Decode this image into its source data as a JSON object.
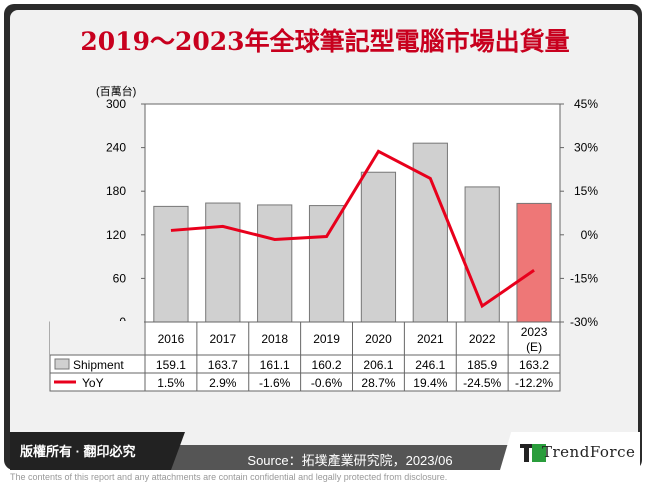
{
  "title": "2019～2023年全球筆記型電腦市場出貨量",
  "footer": {
    "copyright": "版權所有 · 翻印必究",
    "source": "Source：拓墣產業研究院，2023/06",
    "brand": "TrendForce",
    "disclaimer": "The contents of this report and any attachments are contain confidential and legally protected from disclosure."
  },
  "chart_data": {
    "type": "bar+line",
    "ylabel": "(百萬台)",
    "categories": [
      "2016",
      "2017",
      "2018",
      "2019",
      "2020",
      "2021",
      "2022",
      "2023(E)"
    ],
    "y_ticks": [
      "300",
      "240",
      "180",
      "120",
      "60",
      "0"
    ],
    "y2_ticks": [
      "45%",
      "30%",
      "15%",
      "0%",
      "-15%",
      "-30%"
    ],
    "ylim": [
      0,
      300
    ],
    "y2lim": [
      -30,
      45
    ],
    "series": [
      {
        "name": "Shipment",
        "type": "bar",
        "values": [
          159.1,
          163.7,
          161.1,
          160.2,
          206.1,
          246.1,
          185.9,
          163.2
        ],
        "labels": [
          "159.1",
          "163.7",
          "161.1",
          "160.2",
          "206.1",
          "246.1",
          "185.9",
          "163.2"
        ],
        "color": "#d0d0d0",
        "highlight_color": "#ee7777"
      },
      {
        "name": "YoY",
        "type": "line",
        "axis": "right",
        "values": [
          1.5,
          2.9,
          -1.6,
          -0.6,
          28.7,
          19.4,
          -24.5,
          -12.2
        ],
        "labels": [
          "1.5%",
          "2.9%",
          "-1.6%",
          "-0.6%",
          "28.7%",
          "19.4%",
          "-24.5%",
          "-12.2%"
        ],
        "color": "#e8001c"
      }
    ]
  }
}
